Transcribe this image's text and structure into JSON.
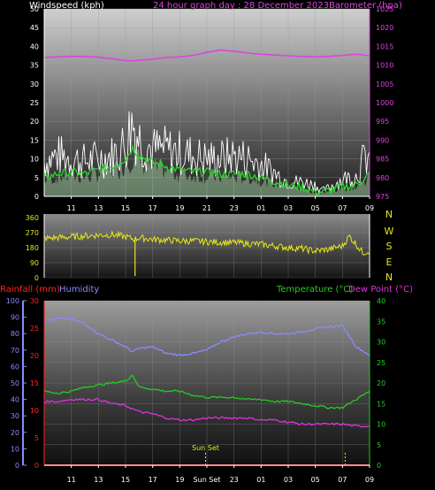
{
  "header": {
    "left_label": "Windspeed (kph)",
    "title": "24 hour graph day : 28 December 2023",
    "right_label": "Barometer (hpa)"
  },
  "colors": {
    "windspeed": "#ffffff",
    "windspeed_avg": "#22dd22",
    "windspeed_fill": "#b6e9b6",
    "barometer": "#dd44dd",
    "wind_direction": "#e6e61a",
    "compass": "#e6e61a",
    "rainfall": "#ff2222",
    "humidity": "#8a8aff",
    "temperature": "#22cc22",
    "dew_point": "#dd33dd",
    "sunset": "#e6e61a",
    "axis_text": "#ffffff"
  },
  "chart_data": [
    {
      "id": "wind_baro",
      "type": "line",
      "title": "24 hour graph day : 28 December 2023",
      "xticks": [
        "11",
        "13",
        "15",
        "17",
        "19",
        "21",
        "23",
        "01",
        "03",
        "05",
        "07",
        "09"
      ],
      "left_axis": {
        "label": "Windspeed (kph)",
        "ticks": [
          "0",
          "5",
          "10",
          "15",
          "20",
          "25",
          "30",
          "35",
          "40",
          "45",
          "50"
        ],
        "range": [
          0,
          50
        ]
      },
      "right_axis": {
        "label": "Barometer (hpa)",
        "ticks": [
          "975",
          "980",
          "985",
          "990",
          "995",
          "1000",
          "1005",
          "1010",
          "1015",
          "1020",
          "1025"
        ],
        "range": [
          975,
          1025
        ]
      },
      "series": [
        {
          "name": "Windspeed (kph)",
          "axis": "left",
          "style": "gust",
          "x": [
            9,
            10,
            11,
            12,
            13,
            14,
            15,
            15.5,
            16,
            17,
            18,
            19,
            20,
            21,
            22,
            23,
            24,
            25,
            26,
            27,
            28,
            29,
            29.5,
            30,
            31,
            32,
            32.5,
            33
          ],
          "values": [
            12,
            14,
            13,
            12,
            13,
            14,
            18,
            26,
            20,
            16,
            16,
            15,
            14,
            13,
            13,
            14,
            13,
            11,
            8,
            5,
            5,
            4,
            2,
            3,
            6,
            7,
            12,
            14
          ]
        },
        {
          "name": "Windspeed average",
          "axis": "left",
          "style": "avg",
          "x": [
            9,
            10,
            11,
            12,
            13,
            14,
            15,
            15.5,
            16,
            17,
            18,
            19,
            20,
            21,
            22,
            23,
            24,
            25,
            26,
            27,
            28,
            29,
            30,
            31,
            32,
            33
          ],
          "values": [
            5,
            6,
            6.5,
            6,
            7,
            8,
            10,
            13,
            11,
            9,
            8,
            7,
            6.5,
            6.5,
            6,
            6,
            6,
            5,
            4,
            3,
            2.5,
            1,
            1.5,
            2.5,
            3,
            6
          ]
        },
        {
          "name": "Barometer (hpa)",
          "axis": "right",
          "x": [
            9,
            10,
            11,
            12,
            13,
            14,
            15,
            15.5,
            16,
            17,
            18,
            19,
            20,
            21,
            22,
            23,
            24,
            25,
            26,
            27,
            28,
            29,
            30,
            31,
            32,
            33
          ],
          "values": [
            1012,
            1012.2,
            1012.3,
            1012.3,
            1012.1,
            1011.7,
            1011.2,
            1011.1,
            1011.3,
            1011.6,
            1012.0,
            1012.2,
            1012.6,
            1013.4,
            1014.0,
            1013.7,
            1013.2,
            1012.9,
            1012.7,
            1012.5,
            1012.3,
            1012.2,
            1012.3,
            1012.6,
            1012.9,
            1012.5
          ]
        }
      ]
    },
    {
      "id": "wind_dir",
      "type": "line",
      "xticks": [],
      "left_axis": {
        "ticks": [
          "0",
          "90",
          "180",
          "270",
          "360"
        ],
        "range": [
          0,
          360
        ]
      },
      "compass_labels": [
        "N",
        "W",
        "S",
        "E",
        "N"
      ],
      "series": [
        {
          "name": "Wind direction",
          "x": [
            9,
            10,
            11,
            12,
            13,
            14,
            15,
            15.7,
            16,
            17,
            18,
            19,
            20,
            21,
            22,
            23,
            24,
            25,
            26,
            27,
            28,
            29,
            30,
            31,
            31.5,
            32,
            32.5,
            33
          ],
          "values": [
            235,
            240,
            245,
            250,
            255,
            258,
            245,
            230,
            240,
            230,
            225,
            220,
            220,
            215,
            212,
            210,
            205,
            200,
            190,
            180,
            175,
            160,
            170,
            190,
            250,
            200,
            150,
            160
          ]
        }
      ]
    },
    {
      "id": "temp_hum",
      "type": "line",
      "xticks": [
        "11",
        "13",
        "15",
        "17",
        "19",
        "Sun Set",
        "23",
        "01",
        "03",
        "05",
        "07",
        "09"
      ],
      "annotations": [
        "Sun Set"
      ],
      "left_axes": [
        {
          "label": "Rainfall (mm)",
          "ticks": [
            "0",
            "5",
            "10",
            "15",
            "20",
            "25",
            "30"
          ],
          "range": [
            0,
            30
          ]
        },
        {
          "label": "Humidity",
          "ticks": [
            "0",
            "10",
            "20",
            "30",
            "40",
            "50",
            "60",
            "70",
            "80",
            "90",
            "100"
          ],
          "range": [
            0,
            100
          ]
        }
      ],
      "right_axis": {
        "label": "Temperature (°C)",
        "ticks": [
          "0",
          "5",
          "10",
          "15",
          "20",
          "25",
          "30",
          "35",
          "40"
        ],
        "range": [
          0,
          40
        ]
      },
      "extra_label": "Dew Point (°C)",
      "series": [
        {
          "name": "Humidity",
          "axis": "humidity",
          "x": [
            9,
            10,
            11,
            12,
            13,
            14,
            15,
            15.5,
            16,
            17,
            18,
            19,
            20,
            21,
            22,
            23,
            24,
            25,
            26,
            27,
            28,
            29,
            30,
            31,
            32,
            33
          ],
          "values": [
            88,
            89,
            89,
            86,
            80,
            76,
            72,
            69,
            71,
            72,
            68,
            67,
            68,
            70,
            75,
            78,
            80,
            81,
            80,
            80,
            81,
            83,
            84,
            85,
            72,
            67
          ]
        },
        {
          "name": "Temperature (°C)",
          "axis": "temperature",
          "x": [
            9,
            10,
            11,
            12,
            13,
            14,
            15,
            15.5,
            16,
            17,
            18,
            19,
            20,
            21,
            22,
            23,
            24,
            25,
            26,
            27,
            28,
            29,
            30,
            31,
            32,
            33
          ],
          "values": [
            18,
            17.5,
            18,
            19,
            19.5,
            20,
            20.5,
            22,
            19,
            18.5,
            18,
            18,
            17,
            16.5,
            16.5,
            16.5,
            16,
            16,
            15.5,
            15.5,
            15,
            14.5,
            14,
            14,
            16,
            18
          ]
        },
        {
          "name": "Dew Point (°C)",
          "axis": "temperature",
          "x": [
            9,
            10,
            11,
            12,
            13,
            14,
            15,
            16,
            17,
            18,
            19,
            20,
            21,
            22,
            23,
            24,
            25,
            26,
            27,
            28,
            29,
            30,
            31,
            32,
            33
          ],
          "values": [
            15.5,
            15.5,
            16,
            16,
            16,
            15,
            14.5,
            13,
            12.5,
            11.5,
            11,
            11,
            11.5,
            11.5,
            11.5,
            11.5,
            11,
            11,
            10.5,
            10,
            10,
            10,
            10,
            9.5,
            9.5
          ]
        },
        {
          "name": "Rainfall (mm)",
          "axis": "rainfall",
          "x": [
            9,
            33
          ],
          "values": [
            0,
            0
          ]
        }
      ],
      "markers": [
        {
          "label": "Sun Set",
          "x": 20.9
        },
        {
          "label": "",
          "x": 31.2
        }
      ]
    }
  ]
}
